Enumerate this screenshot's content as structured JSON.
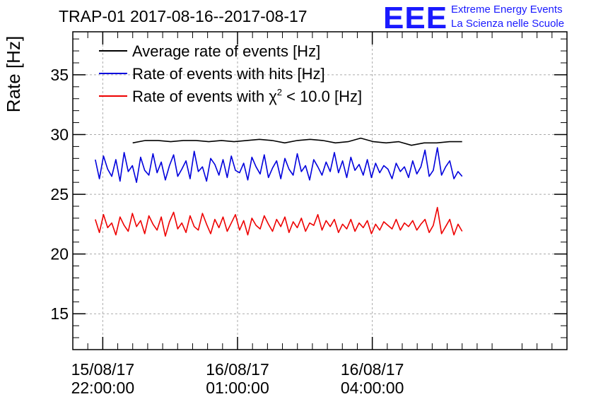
{
  "chart_data": {
    "type": "line",
    "title": "TRAP-01 2017-08-16--2017-08-17",
    "ylabel": "Rate [Hz]",
    "xlabel": "",
    "ylim": [
      12,
      38.6
    ],
    "yticks": [
      15,
      20,
      25,
      30,
      35
    ],
    "x_start": "15/08/17 21:20:00",
    "x_end": "16/08/17 08:20:00",
    "x_tick_labels": [
      {
        "date": "15/08/17",
        "time": "22:00:00",
        "x": "15/08/17 22:00:00"
      },
      {
        "date": "16/08/17",
        "time": "01:00:00",
        "x": "16/08/17 01:00:00"
      },
      {
        "date": "16/08/17",
        "time": "04:00:00",
        "x": "16/08/17 04:00:00"
      }
    ],
    "grid": true,
    "legend_position": "top-left",
    "logo": {
      "text": "EEE",
      "line1": "Extreme Energy Events",
      "line2": "La Scienza nelle Scuole",
      "color": "#1a1aff"
    },
    "series": [
      {
        "name": "Average rate of events [Hz]",
        "color": "#000000",
        "x_start": "15/08/17 22:40:00",
        "x_end": "16/08/17 06:00:00",
        "values": [
          29.3,
          29.5,
          29.5,
          29.4,
          29.5,
          29.5,
          29.4,
          29.5,
          29.4,
          29.5,
          29.6,
          29.5,
          29.3,
          29.5,
          29.6,
          29.5,
          29.3,
          29.4,
          29.7,
          29.4,
          29.3,
          29.4,
          29.1,
          29.3,
          29.3,
          29.4,
          29.4
        ]
      },
      {
        "name": "Rate of events with hits [Hz]",
        "color": "#0000dd",
        "x_start": "15/08/17 21:50:00",
        "x_end": "16/08/17 06:00:00",
        "values": [
          27.9,
          26.3,
          28.2,
          27.1,
          26.5,
          27.9,
          26.1,
          28.5,
          26.9,
          27.4,
          26.0,
          28.1,
          27.0,
          26.6,
          28.4,
          26.8,
          27.7,
          26.2,
          27.4,
          28.3,
          26.5,
          27.1,
          27.8,
          26.3,
          28.6,
          26.9,
          27.3,
          26.1,
          28.0,
          27.5,
          26.6,
          27.9,
          26.4,
          28.2,
          27.0,
          26.8,
          27.6,
          26.2,
          28.1,
          27.3,
          26.7,
          28.3,
          26.4,
          27.2,
          27.8,
          26.3,
          28.0,
          27.1,
          26.6,
          28.4,
          26.9,
          27.4,
          26.2,
          27.9,
          27.3,
          26.6,
          27.7,
          26.9,
          28.5,
          26.8,
          27.8,
          26.4,
          28.1,
          27.0,
          27.5,
          26.6,
          27.9,
          26.4,
          27.6,
          26.8,
          27.4,
          27.1,
          26.3,
          27.6,
          26.9,
          27.3,
          26.4,
          27.8,
          26.7,
          27.3,
          28.7,
          26.5,
          27.0,
          28.9,
          26.6,
          27.3,
          27.8,
          26.3,
          26.9,
          26.5
        ]
      },
      {
        "name": "Rate of events with χ² < 10.0 [Hz]",
        "name_main": "Rate of events with χ",
        "name_sup": "2",
        "name_tail": " < 10.0 [Hz]",
        "color": "#ee0000",
        "x_start": "15/08/17 21:50:00",
        "x_end": "16/08/17 06:00:00",
        "values": [
          22.9,
          21.8,
          23.3,
          22.2,
          22.6,
          21.6,
          23.1,
          22.4,
          21.9,
          23.4,
          22.3,
          22.8,
          21.7,
          23.2,
          22.5,
          22.0,
          23.1,
          21.5,
          22.7,
          23.5,
          22.1,
          22.6,
          21.8,
          23.2,
          22.3,
          22.0,
          23.4,
          22.5,
          21.7,
          22.9,
          22.2,
          23.1,
          21.9,
          22.6,
          23.3,
          22.0,
          22.8,
          21.6,
          23.0,
          22.4,
          22.1,
          23.2,
          22.5,
          21.9,
          22.9,
          22.3,
          23.1,
          21.8,
          22.7,
          22.2,
          23.0,
          21.9,
          22.6,
          22.4,
          23.3,
          22.0,
          22.8,
          22.3,
          22.9,
          21.8,
          22.5,
          22.1,
          22.9,
          21.9,
          22.6,
          22.2,
          22.8,
          21.7,
          22.5,
          22.0,
          22.7,
          22.4,
          22.1,
          22.9,
          22.0,
          22.6,
          22.3,
          22.8,
          22.0,
          22.5,
          22.9,
          21.8,
          22.4,
          23.9,
          21.7,
          22.3,
          22.9,
          21.6,
          22.5,
          21.9
        ]
      }
    ]
  }
}
